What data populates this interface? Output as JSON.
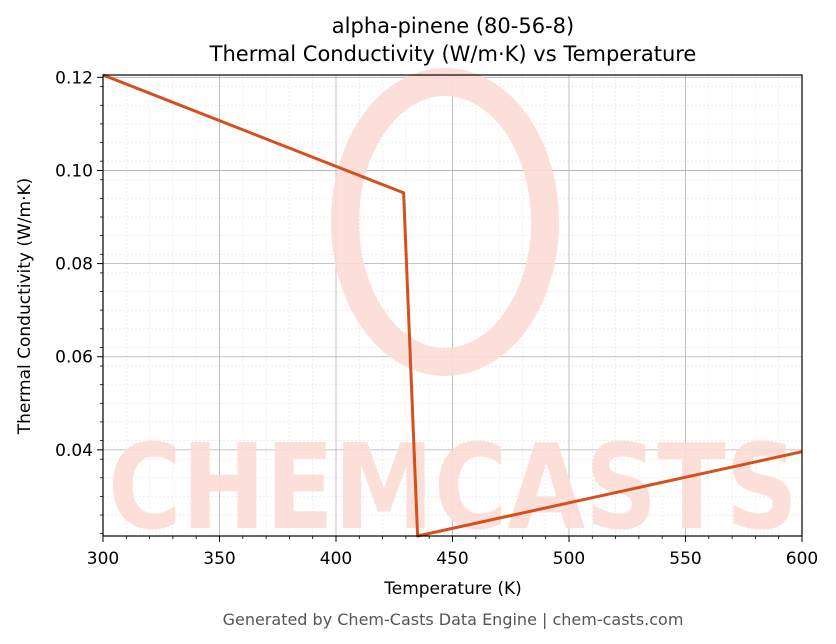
{
  "chart_data": {
    "type": "line",
    "title": "alpha-pinene (80-56-8)",
    "subtitle": "Thermal Conductivity (W/m·K) vs Temperature",
    "xlabel": "Temperature (K)",
    "ylabel": "Thermal Conductivity (W/m·K)",
    "xlim": [
      300,
      600
    ],
    "ylim": [
      0.0215,
      0.1205
    ],
    "x_ticks": [
      "300",
      "350",
      "400",
      "450",
      "500",
      "550",
      "600"
    ],
    "y_ticks": [
      "0.04",
      "0.06",
      "0.08",
      "0.10",
      "0.12"
    ],
    "grid": true,
    "series": [
      {
        "x": [
          300,
          429,
          435,
          600
        ],
        "y": [
          0.1205,
          0.0952,
          0.0215,
          0.0396
        ],
        "color": "#d4511e"
      }
    ]
  },
  "watermark": {
    "text": "CHEMCASTS",
    "color": "#fddcd6"
  },
  "footer": "Generated by Chem-Casts Data Engine | chem-casts.com"
}
